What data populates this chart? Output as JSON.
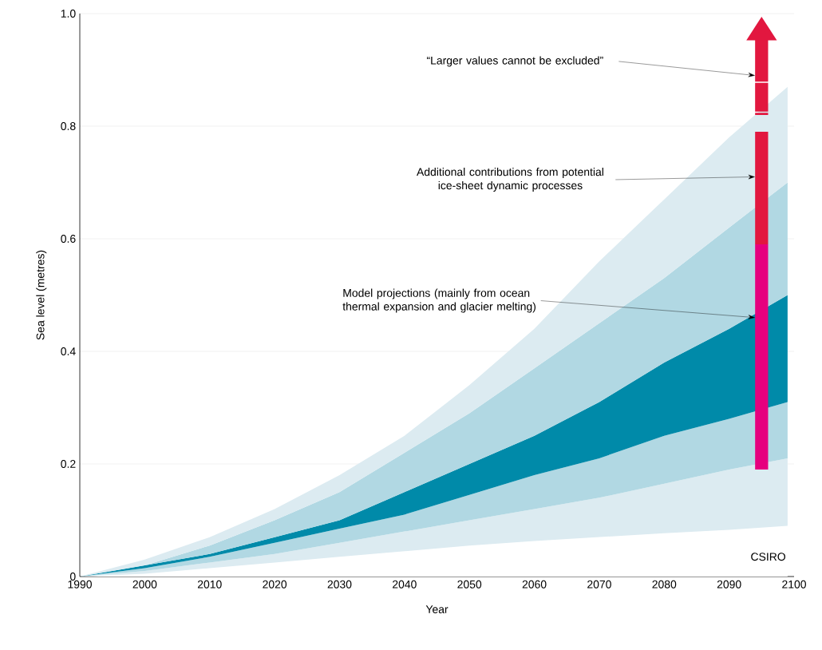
{
  "chart_data": {
    "type": "area",
    "stacked": true,
    "xlabel": "Year",
    "ylabel": "Sea level (metres)",
    "x": [
      1990,
      2000,
      2010,
      2020,
      2030,
      2040,
      2050,
      2060,
      2070,
      2080,
      2090,
      2099
    ],
    "series": [
      {
        "color": "#ffffff",
        "values": [
          0,
          0.005,
          0.015,
          0.025,
          0.035,
          0.045,
          0.055,
          0.063,
          0.07,
          0.077,
          0.083,
          0.09
        ]
      },
      {
        "color": "#dcebf1",
        "values": [
          0,
          0.005,
          0.01,
          0.015,
          0.025,
          0.035,
          0.045,
          0.057,
          0.07,
          0.088,
          0.107,
          0.12
        ]
      },
      {
        "color": "#b1d8e3",
        "values": [
          0,
          0.005,
          0.01,
          0.02,
          0.025,
          0.03,
          0.045,
          0.06,
          0.07,
          0.085,
          0.09,
          0.1
        ]
      },
      {
        "color": "#008aa9",
        "values": [
          0,
          0.005,
          0.005,
          0.01,
          0.015,
          0.04,
          0.055,
          0.07,
          0.1,
          0.13,
          0.16,
          0.19
        ]
      },
      {
        "color": "#b1d8e3",
        "values": [
          0,
          0,
          0.015,
          0.03,
          0.05,
          0.07,
          0.09,
          0.12,
          0.14,
          0.15,
          0.18,
          0.2
        ]
      },
      {
        "color": "#dcebf1",
        "values": [
          0,
          0.01,
          0.015,
          0.02,
          0.03,
          0.03,
          0.05,
          0.07,
          0.11,
          0.14,
          0.16,
          0.17
        ]
      },
      {
        "type": "bar",
        "x": [
          2095
        ],
        "color": "#e6007e",
        "base": [
          0.19
        ],
        "values": [
          0.4
        ]
      },
      {
        "type": "bar",
        "x": [
          2095
        ],
        "color": "#e2173f",
        "base": [
          0.59
        ],
        "values": [
          0.2
        ]
      }
    ],
    "xlim": [
      1990,
      2100
    ],
    "ylim": [
      0,
      1
    ],
    "xticks": [
      1990,
      2000,
      2010,
      2020,
      2030,
      2040,
      2050,
      2060,
      2070,
      2080,
      2090,
      2100
    ],
    "yticks": [
      0,
      0.2,
      0.4,
      0.6,
      0.8,
      {
        "value": 1,
        "label": "1.0"
      }
    ],
    "grid": "y",
    "annotations": [
      "“Larger values cannot be excluded”",
      {
        "text": "Additional contributions from potential ice-sheet dynamic processes",
        "x": 2094,
        "y": 0.71
      },
      {
        "text": "Model projections (mainly from ocean thermal expansion and glacier melting)",
        "x": 2094,
        "y": 0.46
      },
      "CSIRO"
    ]
  }
}
